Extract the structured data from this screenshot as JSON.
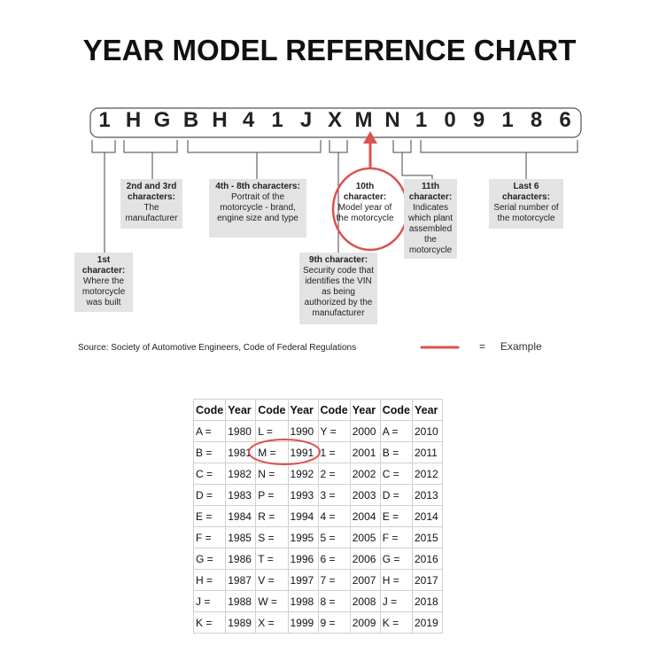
{
  "title": "YEAR MODEL REFERENCE CHART",
  "vin": [
    "1",
    "H",
    "G",
    "B",
    "H",
    "4",
    "1",
    "J",
    "X",
    "M",
    "N",
    "1",
    "0",
    "9",
    "1",
    "8",
    "6"
  ],
  "callouts": [
    {
      "title": "1st character:",
      "text": "Where the motorcycle was built"
    },
    {
      "title": "2nd and 3rd characters:",
      "text": "The manufacturer"
    },
    {
      "title": "4th - 8th characters:",
      "text": "Portrait of the motorcycle - brand, engine size and type"
    },
    {
      "title": "9th character:",
      "text": "Security code that identifies the VIN as being authorized by the manufacturer"
    },
    {
      "title": "10th character:",
      "text": "Model year of the motorcycle"
    },
    {
      "title": "11th character:",
      "text": "Indicates which plant assembled the motorcycle"
    },
    {
      "title": "Last 6 characters:",
      "text": "Serial number of the motorcycle"
    }
  ],
  "source": "Source:  Society of Automotive Engineers, Code of Federal Regulations",
  "legend": {
    "symbol": "=",
    "label": "Example"
  },
  "table": {
    "header": [
      "Code",
      "Year",
      "Code",
      "Year",
      "Code",
      "Year",
      "Code",
      "Year"
    ],
    "rows": [
      [
        "A =",
        1980,
        "L =",
        1990,
        "Y =",
        2000,
        "A =",
        2010
      ],
      [
        "B =",
        1981,
        "M =",
        1991,
        "1 =",
        2001,
        "B =",
        2011
      ],
      [
        "C =",
        1982,
        "N =",
        1992,
        "2 =",
        2002,
        "C =",
        2012
      ],
      [
        "D =",
        1983,
        "P =",
        1993,
        "3 =",
        2003,
        "D =",
        2013
      ],
      [
        "E =",
        1984,
        "R =",
        1994,
        "4 =",
        2004,
        "E =",
        2014
      ],
      [
        "F =",
        1985,
        "S =",
        1995,
        "5 =",
        2005,
        "F =",
        2015
      ],
      [
        "G =",
        1986,
        "T =",
        1996,
        "6 =",
        2006,
        "G =",
        2016
      ],
      [
        "H =",
        1987,
        "V =",
        1997,
        "7 =",
        2007,
        "H =",
        2017
      ],
      [
        "J =",
        1988,
        "W =",
        1998,
        "8 =",
        2008,
        "J =",
        2018
      ],
      [
        "K =",
        1989,
        "X =",
        1999,
        "9 =",
        2009,
        "K =",
        2019
      ]
    ]
  }
}
